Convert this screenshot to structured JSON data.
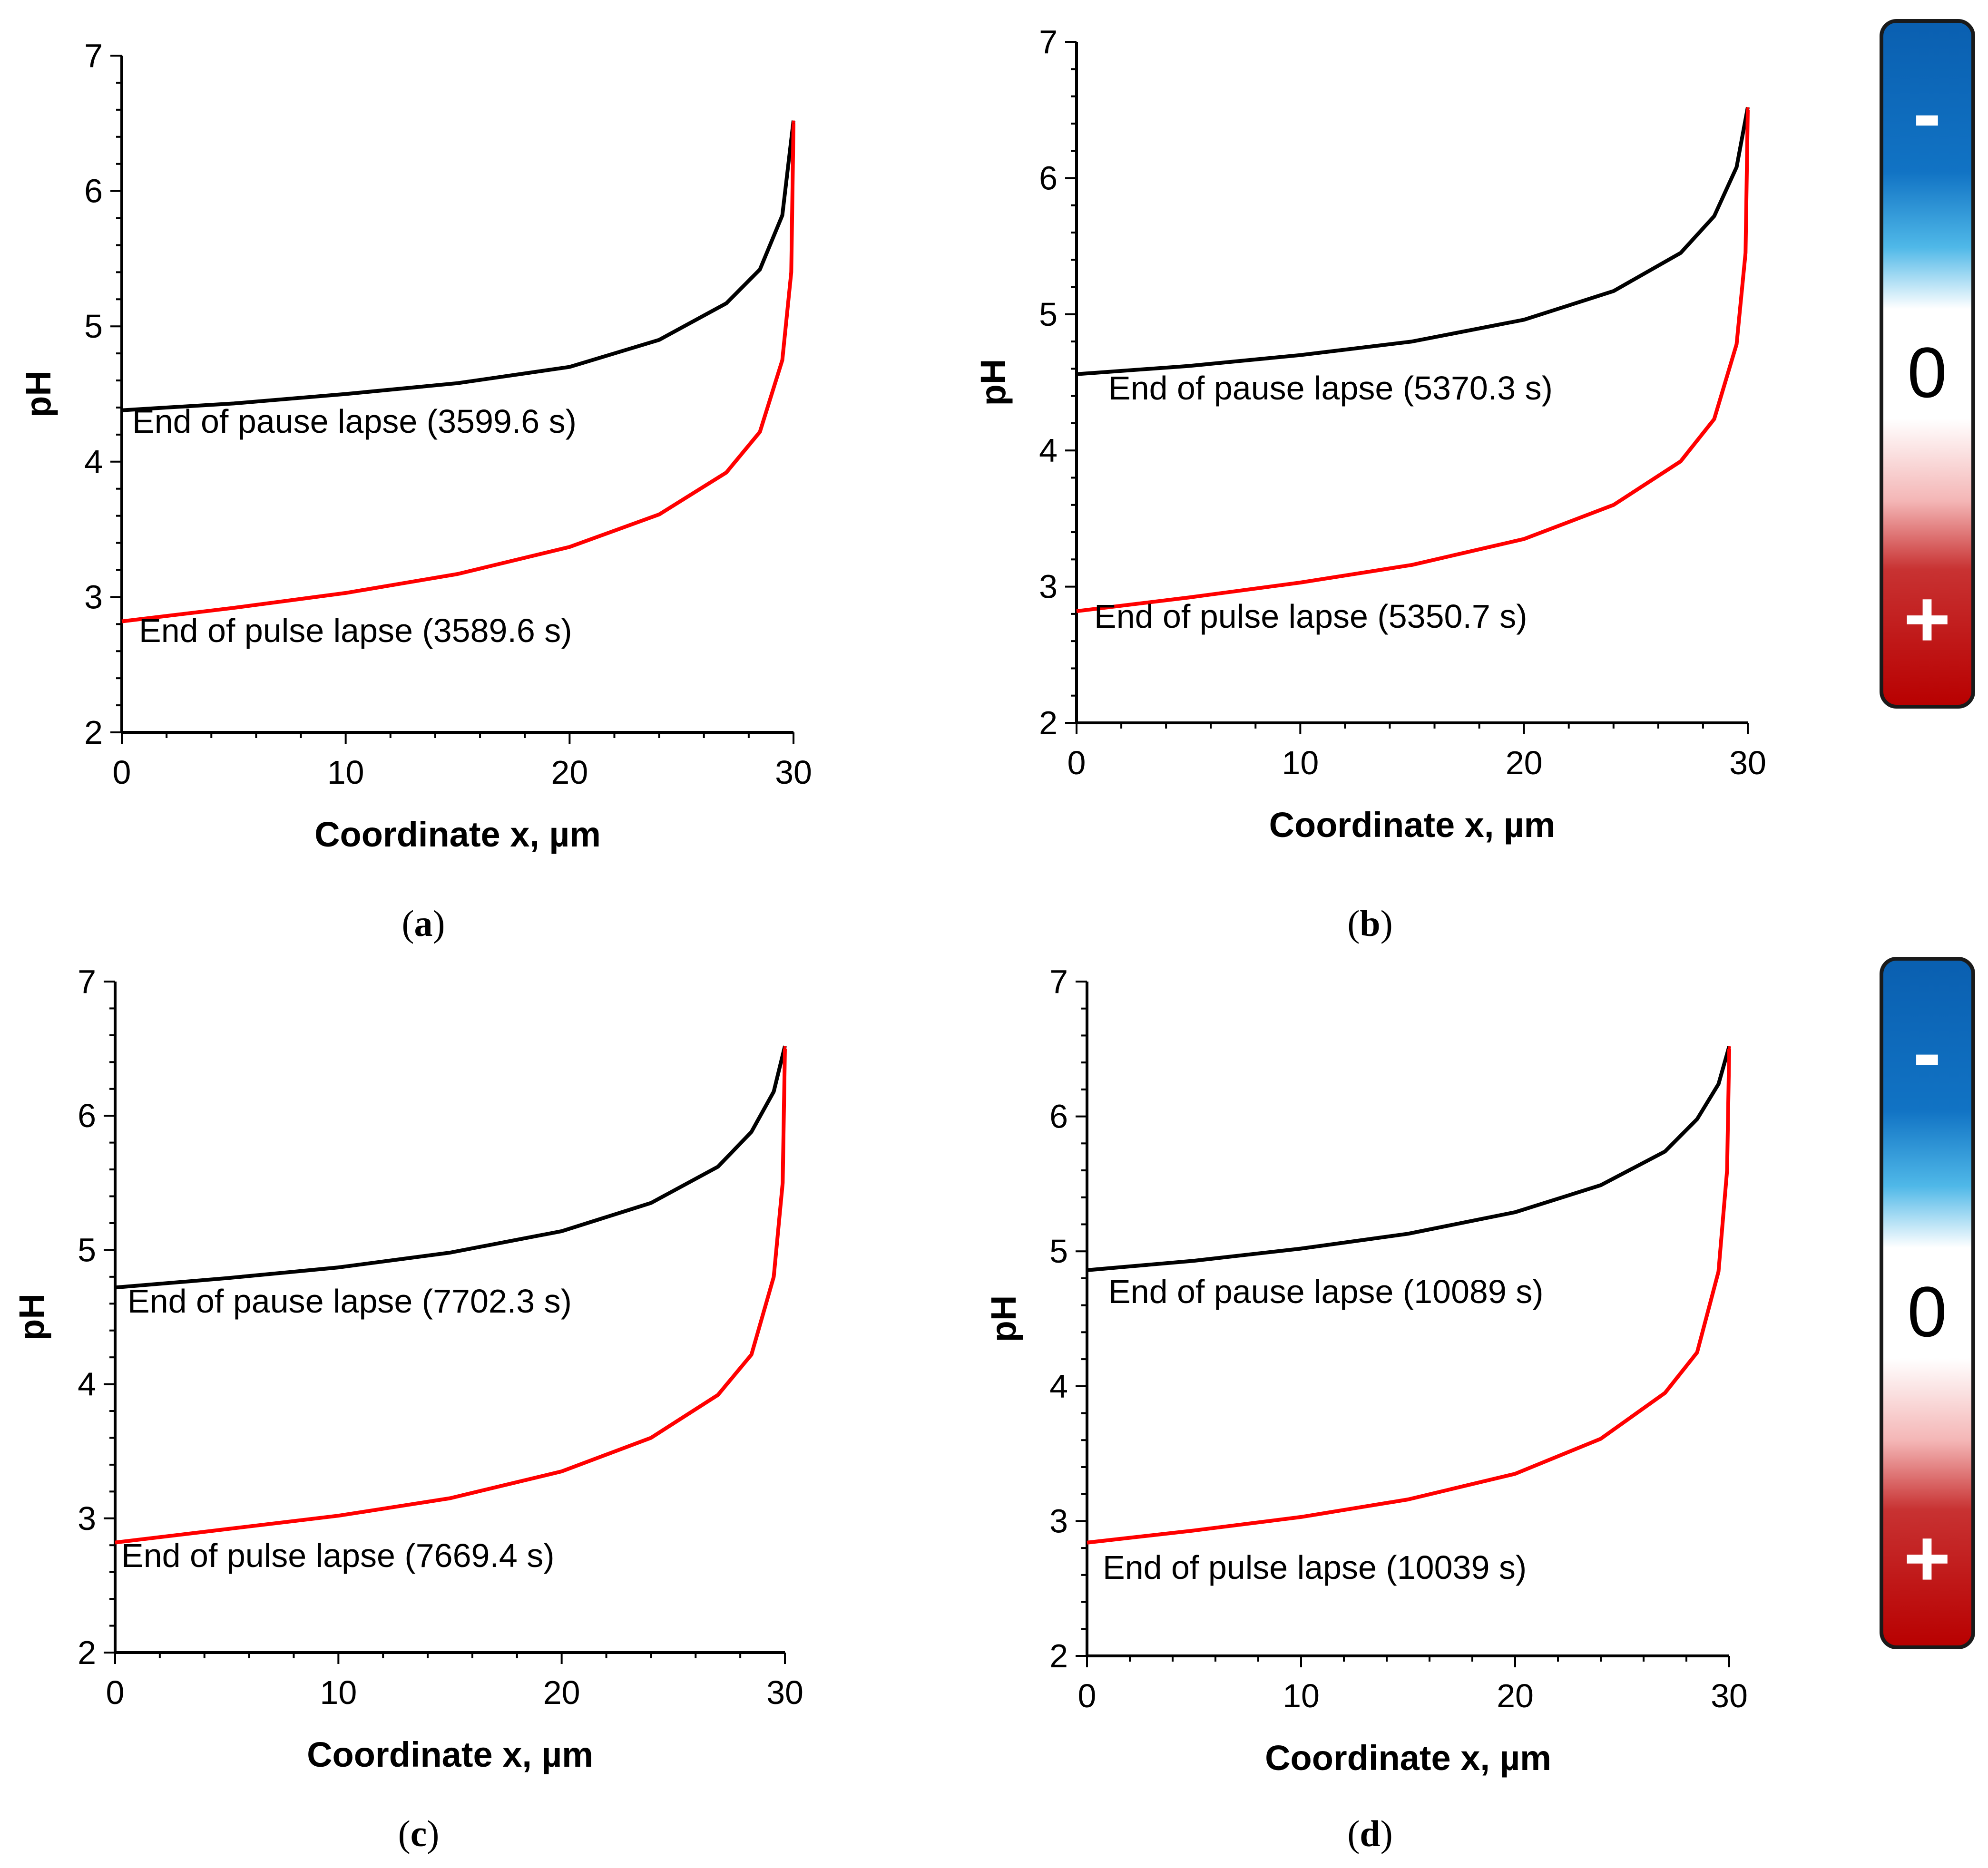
{
  "chart_data": [
    {
      "type": "line",
      "panel": "a",
      "caption_letter": "a",
      "xlabel": "Coordinate x, µm",
      "ylabel": "pH",
      "xlim": [
        0,
        30
      ],
      "ylim": [
        2,
        7
      ],
      "xticks": [
        "0",
        "10",
        "20",
        "30"
      ],
      "yticks": [
        "2",
        "3",
        "4",
        "5",
        "6",
        "7"
      ],
      "series": [
        {
          "name": "End of pause lapse (3599.6 s)",
          "color": "#000000",
          "x": [
            0,
            5,
            10,
            15,
            20,
            24,
            27,
            28.5,
            29.5,
            30
          ],
          "y": [
            4.38,
            4.43,
            4.5,
            4.58,
            4.7,
            4.9,
            5.17,
            5.42,
            5.82,
            6.52
          ]
        },
        {
          "name": "End of pulse lapse (3589.6 s)",
          "color": "#ff0000",
          "x": [
            0,
            5,
            10,
            15,
            20,
            24,
            27,
            28.5,
            29.5,
            29.9,
            30
          ],
          "y": [
            2.82,
            2.92,
            3.03,
            3.17,
            3.37,
            3.61,
            3.92,
            4.22,
            4.75,
            5.4,
            6.5
          ]
        }
      ],
      "annotations": [
        "End of pause lapse (3599.6 s)",
        "End of pulse lapse (3589.6 s)"
      ]
    },
    {
      "type": "line",
      "panel": "b",
      "caption_letter": "b",
      "xlabel": "Coordinate x, µm",
      "ylabel": "pH",
      "xlim": [
        0,
        30
      ],
      "ylim": [
        2,
        7
      ],
      "xticks": [
        "0",
        "10",
        "20",
        "30"
      ],
      "yticks": [
        "2",
        "3",
        "4",
        "5",
        "6",
        "7"
      ],
      "series": [
        {
          "name": "End of pause lapse (5370.3 s)",
          "color": "#000000",
          "x": [
            0,
            5,
            10,
            15,
            20,
            24,
            27,
            28.5,
            29.5,
            30
          ],
          "y": [
            4.56,
            4.62,
            4.7,
            4.8,
            4.96,
            5.17,
            5.45,
            5.72,
            6.08,
            6.52
          ]
        },
        {
          "name": "End of pulse lapse (5350.7 s)",
          "color": "#ff0000",
          "x": [
            0,
            5,
            10,
            15,
            20,
            24,
            27,
            28.5,
            29.5,
            29.9,
            30
          ],
          "y": [
            2.82,
            2.92,
            3.03,
            3.16,
            3.35,
            3.6,
            3.92,
            4.23,
            4.78,
            5.45,
            6.5
          ]
        }
      ],
      "annotations": [
        "End of pause lapse (5370.3 s)",
        "End of pulse lapse (5350.7 s)"
      ]
    },
    {
      "type": "line",
      "panel": "c",
      "caption_letter": "c",
      "xlabel": "Coordinate x, µm",
      "ylabel": "pH",
      "xlim": [
        0,
        30
      ],
      "ylim": [
        2,
        7
      ],
      "xticks": [
        "0",
        "10",
        "20",
        "30"
      ],
      "yticks": [
        "2",
        "3",
        "4",
        "5",
        "6",
        "7"
      ],
      "series": [
        {
          "name": "End of pause lapse (7702.3 s)",
          "color": "#000000",
          "x": [
            0,
            5,
            10,
            15,
            20,
            24,
            27,
            28.5,
            29.5,
            30
          ],
          "y": [
            4.72,
            4.79,
            4.87,
            4.98,
            5.14,
            5.35,
            5.62,
            5.88,
            6.18,
            6.52
          ]
        },
        {
          "name": "End of pulse lapse (7669.4 s)",
          "color": "#ff0000",
          "x": [
            0,
            5,
            10,
            15,
            20,
            24,
            27,
            28.5,
            29.5,
            29.9,
            30
          ],
          "y": [
            2.82,
            2.92,
            3.02,
            3.15,
            3.35,
            3.6,
            3.92,
            4.22,
            4.8,
            5.5,
            6.5
          ]
        }
      ],
      "annotations": [
        "End of pause lapse (7702.3 s)",
        "End of pulse lapse (7669.4 s)"
      ]
    },
    {
      "type": "line",
      "panel": "d",
      "caption_letter": "d",
      "xlabel": "Coordinate x, µm",
      "ylabel": "pH",
      "xlim": [
        0,
        30
      ],
      "ylim": [
        2,
        7
      ],
      "xticks": [
        "0",
        "10",
        "20",
        "30"
      ],
      "yticks": [
        "2",
        "3",
        "4",
        "5",
        "6",
        "7"
      ],
      "series": [
        {
          "name": "End of pause lapse (10089 s)",
          "color": "#000000",
          "x": [
            0,
            5,
            10,
            15,
            20,
            24,
            27,
            28.5,
            29.5,
            30
          ],
          "y": [
            4.86,
            4.93,
            5.02,
            5.13,
            5.29,
            5.49,
            5.74,
            5.98,
            6.24,
            6.52
          ]
        },
        {
          "name": "End of pulse lapse (10039 s)",
          "color": "#ff0000",
          "x": [
            0,
            5,
            10,
            15,
            20,
            24,
            27,
            28.5,
            29.5,
            29.9,
            30
          ],
          "y": [
            2.84,
            2.93,
            3.03,
            3.16,
            3.35,
            3.61,
            3.95,
            4.25,
            4.85,
            5.6,
            6.5
          ]
        }
      ],
      "annotations": [
        "End of pause lapse (10089 s)",
        "End of pulse lapse (10039 s)"
      ]
    }
  ],
  "colorbars": [
    {
      "top_label": "-",
      "middle_label": "0",
      "bottom_label": "+",
      "colors": [
        "#0a5fb0",
        "#4fb8e8",
        "#ffffff",
        "#f4b6b6",
        "#c00000"
      ]
    },
    {
      "top_label": "-",
      "middle_label": "0",
      "bottom_label": "+",
      "colors": [
        "#0a5fb0",
        "#4fb8e8",
        "#ffffff",
        "#f4b6b6",
        "#c00000"
      ]
    }
  ]
}
